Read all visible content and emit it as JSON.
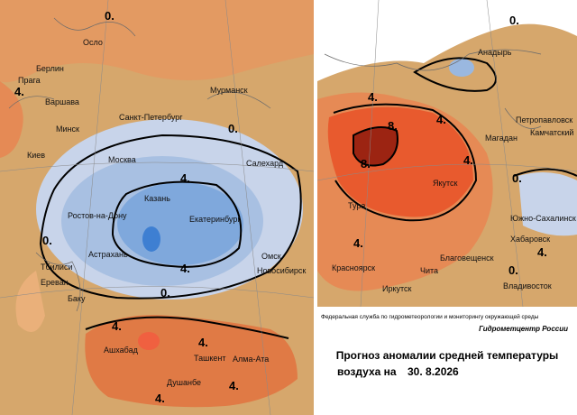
{
  "left_map": {
    "cities": [
      "Осло",
      "Берлин",
      "Прага",
      "Варшава",
      "Мурманск",
      "Санкт-Петербург",
      "Минск",
      "Киев",
      "Москва",
      "Салехард",
      "Казань",
      "Екатеринбург",
      "Ростов-на-Дону",
      "Астрахань",
      "Омск",
      "Тбилиси",
      "Новосибирск",
      "Ереван",
      "Баку",
      "Ашхабад",
      "Ташкент",
      "Алма-Ата",
      "Душанбе"
    ],
    "contour_labels": [
      "0.",
      "4.",
      "0.",
      "4.",
      "0.",
      "4.",
      "0.",
      "4.",
      "4.",
      "4.",
      "4."
    ]
  },
  "right_map": {
    "cities": [
      "Анадырь",
      "Петропавловск",
      "Камчатский",
      "Магадан",
      "Якутск",
      "Тура",
      "Южно-Сахалинск",
      "Хабаровск",
      "Благовещенск",
      "Красноярск",
      "Чита",
      "Иркутск",
      "Владивосток"
    ],
    "contour_labels": [
      "0.",
      "4.",
      "8.",
      "8.",
      "4.",
      "4.",
      "0.",
      "4.",
      "4.",
      "0."
    ]
  },
  "footer": {
    "agency": "Федеральная служба по гидрометеорологии и мониторингу окружающей среды",
    "center": "Гидрометцентр России",
    "title_line1": "Прогноз аномалии средней температуры",
    "title_line2": "воздуха на",
    "date": "30. 8.2026"
  }
}
